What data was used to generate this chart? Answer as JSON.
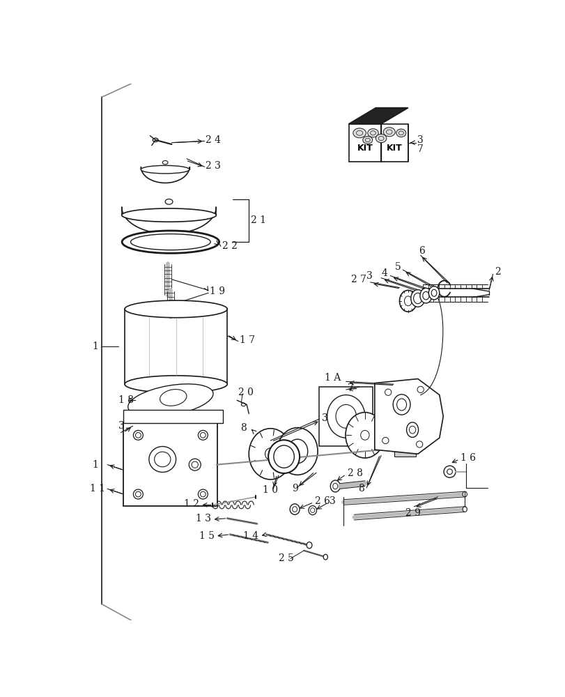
{
  "figsize": [
    8.12,
    10.0
  ],
  "dpi": 100,
  "bg": "#ffffff",
  "lc": "#1a1a1a"
}
